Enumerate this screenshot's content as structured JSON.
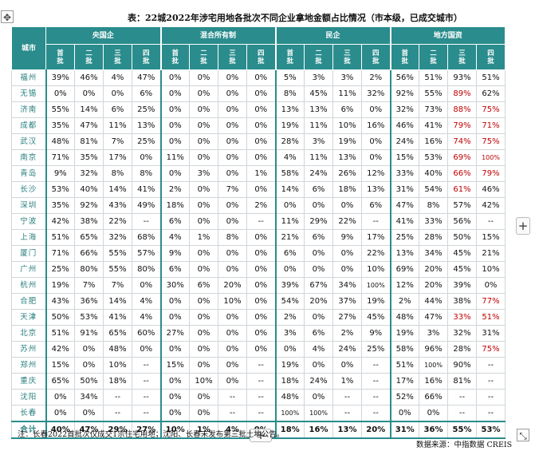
{
  "title": "表：22城2022年涉宅用地各批次不同企业拿地金额占比情况（市本级，已成交城市）",
  "table": {
    "city_header": "城市",
    "groups": [
      "央国企",
      "混合所有制",
      "民企",
      "地方国资"
    ],
    "batches": [
      "首批",
      "二批",
      "三批",
      "四批"
    ],
    "rows": [
      {
        "city": "福州",
        "values": [
          "39%",
          "46%",
          "4%",
          "47%",
          "0%",
          "0%",
          "0%",
          "0%",
          "5%",
          "3%",
          "3%",
          "2%",
          "56%",
          "51%",
          "93%",
          "51%"
        ]
      },
      {
        "city": "无锡",
        "values": [
          "0%",
          "0%",
          "0%",
          "6%",
          "0%",
          "0%",
          "0%",
          "0%",
          "8%",
          "45%",
          "11%",
          "32%",
          "92%",
          "55%",
          "89%",
          "62%"
        ]
      },
      {
        "city": "济南",
        "values": [
          "55%",
          "14%",
          "6%",
          "25%",
          "0%",
          "0%",
          "0%",
          "0%",
          "13%",
          "13%",
          "6%",
          "0%",
          "32%",
          "73%",
          "88%",
          "75%"
        ]
      },
      {
        "city": "成都",
        "values": [
          "35%",
          "47%",
          "11%",
          "13%",
          "0%",
          "0%",
          "0%",
          "0%",
          "19%",
          "11%",
          "10%",
          "16%",
          "46%",
          "41%",
          "79%",
          "71%"
        ]
      },
      {
        "city": "武汉",
        "values": [
          "48%",
          "81%",
          "7%",
          "25%",
          "0%",
          "0%",
          "0%",
          "0%",
          "28%",
          "3%",
          "19%",
          "0%",
          "24%",
          "16%",
          "74%",
          "75%"
        ]
      },
      {
        "city": "南京",
        "values": [
          "71%",
          "35%",
          "17%",
          "0%",
          "11%",
          "0%",
          "0%",
          "0%",
          "4%",
          "11%",
          "13%",
          "0%",
          "15%",
          "53%",
          "69%",
          "100%"
        ]
      },
      {
        "city": "青岛",
        "values": [
          "9%",
          "32%",
          "8%",
          "8%",
          "0%",
          "3%",
          "0%",
          "1%",
          "58%",
          "24%",
          "26%",
          "12%",
          "33%",
          "40%",
          "66%",
          "79%"
        ]
      },
      {
        "city": "长沙",
        "values": [
          "53%",
          "40%",
          "14%",
          "41%",
          "2%",
          "0%",
          "7%",
          "0%",
          "14%",
          "6%",
          "18%",
          "13%",
          "31%",
          "54%",
          "61%",
          "46%"
        ]
      },
      {
        "city": "深圳",
        "values": [
          "35%",
          "92%",
          "43%",
          "49%",
          "18%",
          "0%",
          "0%",
          "2%",
          "0%",
          "0%",
          "0%",
          "6%",
          "47%",
          "8%",
          "57%",
          "42%"
        ]
      },
      {
        "city": "宁波",
        "values": [
          "42%",
          "38%",
          "22%",
          "--",
          "6%",
          "0%",
          "0%",
          "--",
          "11%",
          "29%",
          "22%",
          "--",
          "41%",
          "33%",
          "56%",
          "--"
        ]
      },
      {
        "city": "上海",
        "values": [
          "51%",
          "65%",
          "32%",
          "68%",
          "4%",
          "1%",
          "8%",
          "0%",
          "21%",
          "6%",
          "9%",
          "17%",
          "25%",
          "28%",
          "50%",
          "15%"
        ]
      },
      {
        "city": "厦门",
        "values": [
          "71%",
          "66%",
          "55%",
          "57%",
          "9%",
          "0%",
          "0%",
          "0%",
          "6%",
          "0%",
          "0%",
          "22%",
          "13%",
          "34%",
          "45%",
          "21%"
        ]
      },
      {
        "city": "广州",
        "values": [
          "25%",
          "80%",
          "55%",
          "80%",
          "6%",
          "0%",
          "0%",
          "0%",
          "0%",
          "0%",
          "0%",
          "10%",
          "69%",
          "20%",
          "45%",
          "10%"
        ]
      },
      {
        "city": "杭州",
        "values": [
          "19%",
          "7%",
          "7%",
          "0%",
          "30%",
          "6%",
          "20%",
          "0%",
          "39%",
          "67%",
          "34%",
          "100%",
          "12%",
          "20%",
          "39%",
          "0%"
        ]
      },
      {
        "city": "合肥",
        "values": [
          "43%",
          "36%",
          "14%",
          "4%",
          "0%",
          "0%",
          "10%",
          "0%",
          "54%",
          "20%",
          "37%",
          "19%",
          "2%",
          "44%",
          "38%",
          "77%"
        ]
      },
      {
        "city": "天津",
        "values": [
          "50%",
          "53%",
          "41%",
          "4%",
          "0%",
          "0%",
          "0%",
          "0%",
          "2%",
          "0%",
          "27%",
          "45%",
          "48%",
          "47%",
          "33%",
          "51%"
        ]
      },
      {
        "city": "北京",
        "values": [
          "51%",
          "91%",
          "65%",
          "60%",
          "27%",
          "0%",
          "0%",
          "0%",
          "3%",
          "6%",
          "2%",
          "9%",
          "19%",
          "3%",
          "32%",
          "31%"
        ]
      },
      {
        "city": "苏州",
        "values": [
          "42%",
          "0%",
          "48%",
          "0%",
          "0%",
          "0%",
          "0%",
          "0%",
          "0%",
          "4%",
          "24%",
          "25%",
          "58%",
          "96%",
          "28%",
          "75%"
        ]
      },
      {
        "city": "郑州",
        "values": [
          "15%",
          "0%",
          "10%",
          "--",
          "15%",
          "0%",
          "0%",
          "--",
          "19%",
          "0%",
          "0%",
          "--",
          "51%",
          "100%",
          "90%",
          "--"
        ]
      },
      {
        "city": "重庆",
        "values": [
          "65%",
          "50%",
          "18%",
          "--",
          "0%",
          "10%",
          "0%",
          "--",
          "18%",
          "24%",
          "1%",
          "--",
          "17%",
          "16%",
          "81%",
          "--"
        ]
      },
      {
        "city": "沈阳",
        "values": [
          "0%",
          "34%",
          "--",
          "--",
          "0%",
          "0%",
          "--",
          "--",
          "48%",
          "0%",
          "--",
          "--",
          "52%",
          "66%",
          "--",
          "--"
        ]
      },
      {
        "city": "长春",
        "values": [
          "0%",
          "0%",
          "--",
          "--",
          "0%",
          "0%",
          "--",
          "--",
          "100%",
          "100%",
          "--",
          "--",
          "0%",
          "0%",
          "--",
          "--"
        ]
      }
    ],
    "total": {
      "city": "合计",
      "values": [
        "40%",
        "47%",
        "29%",
        "27%",
        "10%",
        "1%",
        "4%",
        "0%",
        "18%",
        "16%",
        "13%",
        "20%",
        "31%",
        "36%",
        "55%",
        "53%"
      ]
    },
    "red_cells": [
      [
        1,
        14
      ],
      [
        2,
        14
      ],
      [
        2,
        15
      ],
      [
        3,
        14
      ],
      [
        3,
        15
      ],
      [
        4,
        14
      ],
      [
        4,
        15
      ],
      [
        5,
        14
      ],
      [
        5,
        15
      ],
      [
        6,
        14
      ],
      [
        6,
        15
      ],
      [
        7,
        14
      ],
      [
        14,
        15
      ],
      [
        15,
        14
      ],
      [
        15,
        15
      ],
      [
        17,
        15
      ]
    ]
  },
  "note": "注：长春2022首批次仅成交1宗住宅用地；沈阳、长春未发布第三批土地公告。",
  "source": "数据来源：中指数据 CREIS",
  "controls": {
    "move_icon": "✥",
    "resize_icon": "⤡",
    "add_column": "+",
    "add_row": "+"
  },
  "colors": {
    "header_bg": "#2a8c8c",
    "city_text": "#2a7f7f",
    "highlight": "#c00000"
  }
}
